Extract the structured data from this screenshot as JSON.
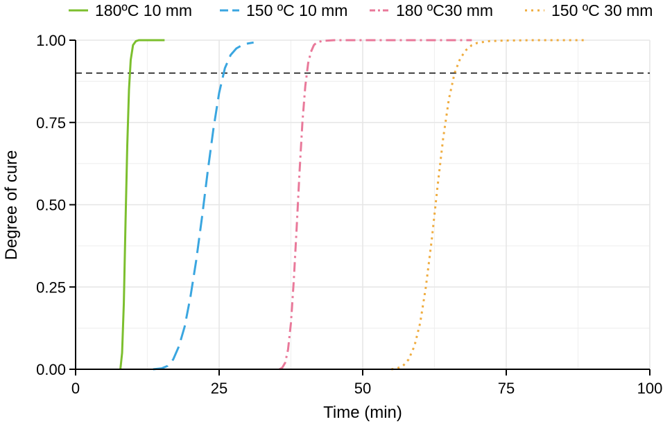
{
  "chart_data": {
    "type": "line",
    "xlabel": "Time (min)",
    "ylabel": "Degree of cure",
    "xlim": [
      0,
      100
    ],
    "ylim": [
      0,
      1
    ],
    "x_ticks": [
      0,
      25,
      50,
      75,
      100
    ],
    "x_tick_labels": [
      "0",
      "25",
      "50",
      "75",
      "100"
    ],
    "y_ticks": [
      0,
      0.25,
      0.5,
      0.75,
      1
    ],
    "y_tick_labels": [
      "0.00",
      "0.25",
      "0.50",
      "0.75",
      "1.00"
    ],
    "grid": true,
    "legend_position": "top",
    "reference_line": {
      "y": 0.9,
      "style": "dashed",
      "color": "#000000"
    },
    "series": [
      {
        "name": "180ºC 10 mm",
        "color": "#7cbf2e",
        "dash": "solid",
        "x": [
          7.8,
          8.1,
          8.4,
          8.7,
          9.0,
          9.3,
          9.6,
          10.0,
          10.5,
          11.0,
          12.0,
          13.0,
          15.5
        ],
        "y": [
          0.0,
          0.05,
          0.2,
          0.45,
          0.68,
          0.85,
          0.94,
          0.985,
          0.997,
          1.0,
          1.0,
          1.0,
          1.0
        ]
      },
      {
        "name": "150 ºC 10 mm",
        "color": "#3aa6e0",
        "dash": "long-dash",
        "x": [
          13.5,
          15.0,
          16.0,
          17.0,
          18.0,
          19.0,
          20.0,
          21.0,
          22.0,
          23.0,
          24.0,
          25.0,
          26.0,
          27.0,
          28.0,
          29.0,
          30.0,
          31.0
        ],
        "y": [
          0.0,
          0.003,
          0.01,
          0.03,
          0.07,
          0.13,
          0.22,
          0.33,
          0.46,
          0.6,
          0.73,
          0.84,
          0.915,
          0.955,
          0.975,
          0.985,
          0.99,
          0.993
        ]
      },
      {
        "name": "180 ºC30 mm",
        "color": "#e9799a",
        "dash": "dash-dot",
        "x": [
          35.5,
          36.0,
          36.5,
          37.0,
          37.5,
          38.0,
          38.5,
          39.0,
          39.5,
          40.0,
          40.5,
          41.0,
          41.5,
          42.0,
          43.0,
          45.0,
          50.0,
          60.0,
          69.0
        ],
        "y": [
          0.0,
          0.005,
          0.02,
          0.06,
          0.14,
          0.27,
          0.43,
          0.6,
          0.75,
          0.86,
          0.93,
          0.965,
          0.985,
          0.993,
          0.998,
          1.0,
          1.0,
          1.0,
          1.0
        ]
      },
      {
        "name": "150 ºC 30 mm",
        "color": "#efac3f",
        "dash": "dotted",
        "x": [
          55.0,
          56.0,
          57.0,
          58.0,
          59.0,
          60.0,
          61.0,
          62.0,
          63.0,
          64.0,
          65.0,
          66.0,
          67.0,
          68.0,
          69.0,
          70.0,
          72.0,
          75.0,
          80.0,
          89.0
        ],
        "y": [
          0.0,
          0.003,
          0.01,
          0.03,
          0.07,
          0.14,
          0.25,
          0.39,
          0.55,
          0.7,
          0.82,
          0.9,
          0.945,
          0.97,
          0.985,
          0.992,
          0.997,
          0.999,
          1.0,
          1.0
        ]
      }
    ]
  }
}
